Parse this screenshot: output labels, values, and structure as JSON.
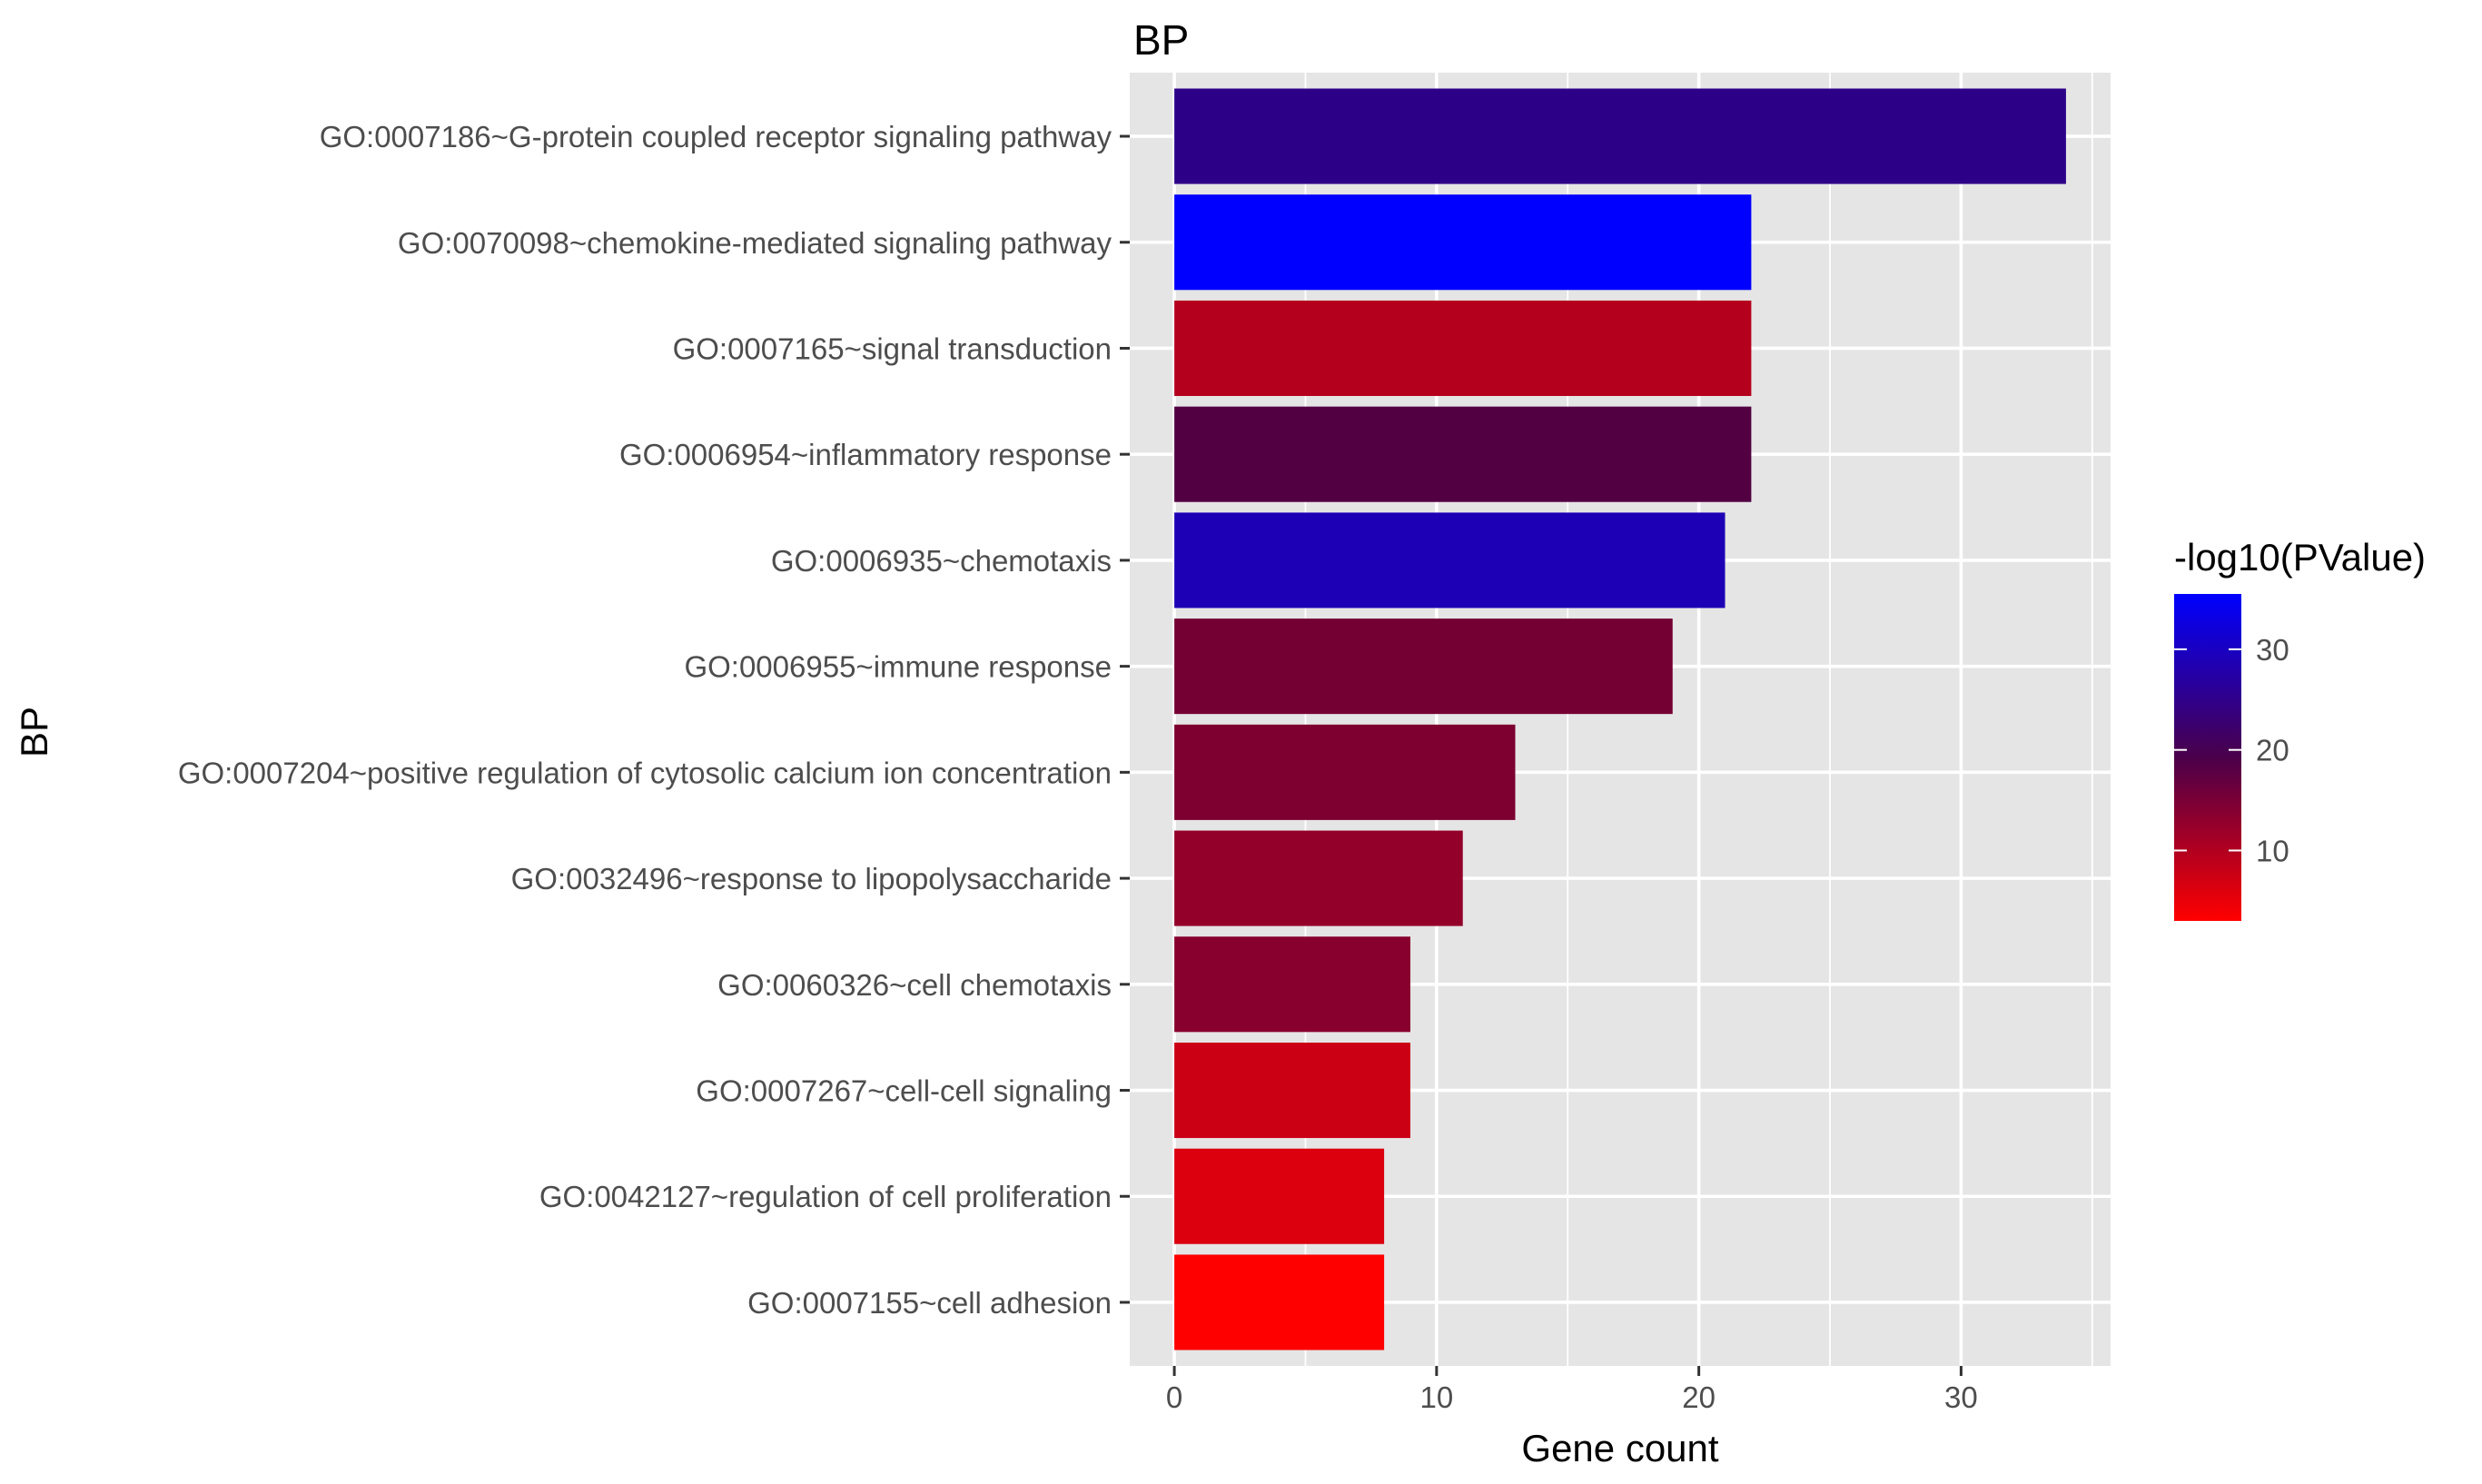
{
  "chart_data": {
    "type": "bar",
    "orientation": "horizontal",
    "title": "BP",
    "xlabel": "Gene count",
    "ylabel": "BP",
    "xlim": [
      -1.7,
      35.7
    ],
    "xticks": [
      0,
      10,
      20,
      30
    ],
    "grid": true,
    "categories": [
      "GO:0007186~G-protein coupled receptor signaling pathway",
      "GO:0070098~chemokine-mediated signaling pathway",
      "GO:0007165~signal transduction",
      "GO:0006954~inflammatory response",
      "GO:0006935~chemotaxis",
      "GO:0006955~immune response",
      "GO:0007204~positive regulation of cytosolic calcium ion concentration",
      "GO:0032496~response to lipopolysaccharide",
      "GO:0060326~cell chemotaxis",
      "GO:0007267~cell-cell signaling",
      "GO:0042127~regulation of cell proliferation",
      "GO:0007155~cell adhesion"
    ],
    "values": [
      34,
      22,
      22,
      22,
      21,
      19,
      13,
      11,
      9,
      9,
      8,
      8
    ],
    "color_values": [
      27.5,
      35.5,
      7.5,
      17.5,
      31,
      13,
      12,
      10,
      11,
      6,
      5,
      3
    ],
    "colorbar": {
      "title": "-log10(PValue)",
      "range": [
        3,
        35.5
      ],
      "ticks": [
        10,
        20,
        30
      ],
      "low_color": "#ff0000",
      "high_color": "#0000ff",
      "placement": "right"
    },
    "panel_background": "#e5e5e5",
    "grid_color": "#ffffff"
  }
}
